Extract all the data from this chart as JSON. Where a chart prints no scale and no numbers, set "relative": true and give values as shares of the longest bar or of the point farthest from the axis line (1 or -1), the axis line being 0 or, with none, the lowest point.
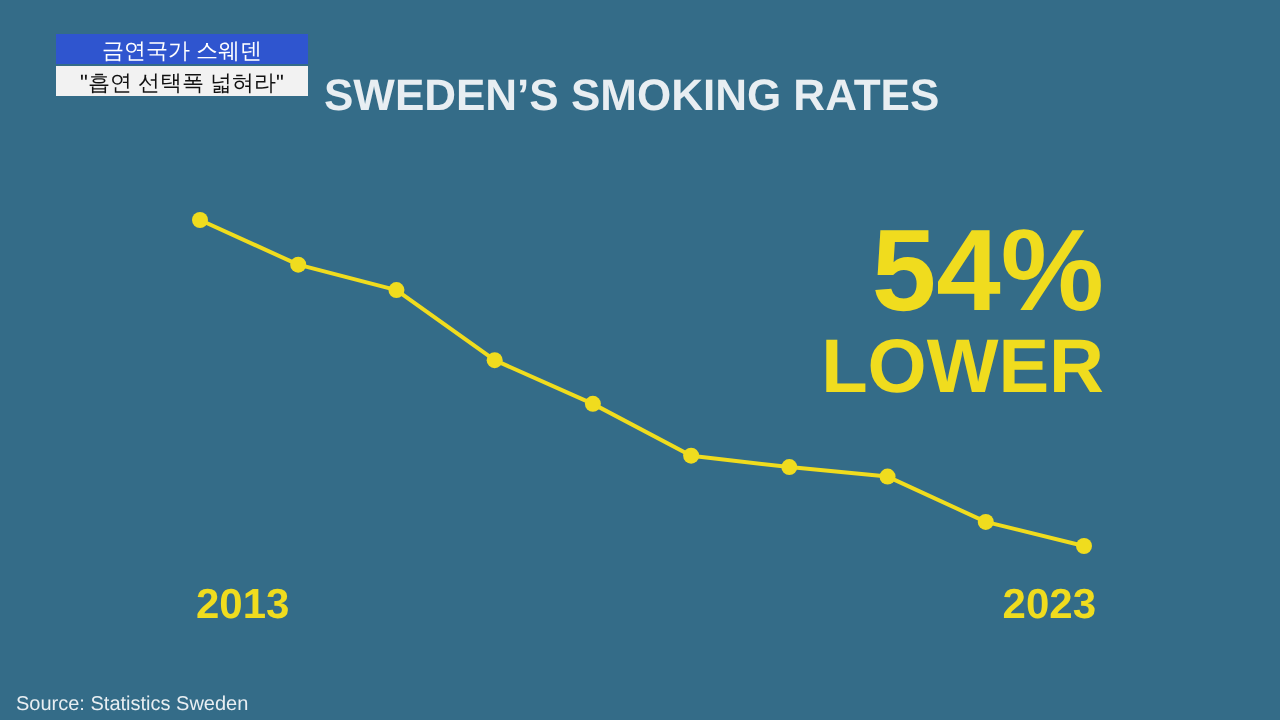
{
  "chart_data": {
    "type": "line",
    "title": "SWEDEN’S SMOKING RATES",
    "categories": [
      null,
      null,
      null,
      null,
      null,
      null,
      null,
      null,
      null,
      null
    ],
    "values": [
      1,
      0.863,
      0.785,
      0.57,
      0.436,
      0.277,
      0.242,
      0.213,
      0.074,
      0
    ],
    "color": "#f0dc1e",
    "relative": true,
    "marker": "circle",
    "annotations": [
      "금연국가 스웨덴",
      "\"흡연 선택폭 넓혀라\"",
      "54%",
      "LOWER",
      "Source: Statistics Sweden",
      "2013",
      "2023"
    ]
  }
}
